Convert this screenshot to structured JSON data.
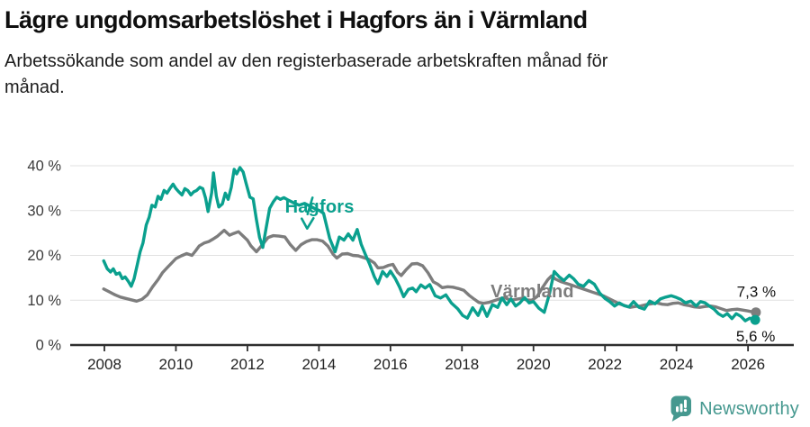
{
  "header": {
    "title": "Lägre ungdomsarbetslöshet i Hagfors än i Värmland",
    "subtitle": "Arbetssökande som andel av den registerbaserade arbetskraften månad för månad."
  },
  "footer": {
    "brand": "Newsworthy",
    "brand_color": "#45988f"
  },
  "chart_data": {
    "type": "line",
    "title": "Lägre ungdomsarbetslöshet i Hagfors än i Värmland",
    "unit": "%",
    "grid": true,
    "legend_position": "inline-labels",
    "xlim": [
      2007.9,
      2026.6
    ],
    "ylim": [
      0,
      43
    ],
    "x_ticks": [
      2008,
      2010,
      2012,
      2014,
      2016,
      2018,
      2020,
      2022,
      2024,
      2026
    ],
    "y_axis": [
      {
        "value": 40,
        "label": "40 %"
      },
      {
        "value": 30,
        "label": "30 %"
      },
      {
        "value": 20,
        "label": "20 %"
      },
      {
        "value": 10,
        "label": "10 %"
      },
      {
        "value": 0,
        "label": "0 %"
      }
    ],
    "series": [
      {
        "id": "varmland",
        "name": "Värmland",
        "color": "#7d7d7d",
        "end_label": "7,3 %",
        "end_label_side": "above",
        "end_value": 7.3,
        "label_anchor": {
          "x": 2018.8,
          "y": 12.1
        },
        "points": [
          [
            2007.98,
            12.5
          ],
          [
            2008.15,
            11.8
          ],
          [
            2008.3,
            11.2
          ],
          [
            2008.45,
            10.7
          ],
          [
            2008.6,
            10.4
          ],
          [
            2008.75,
            10.1
          ],
          [
            2008.9,
            9.8
          ],
          [
            2009.05,
            10.2
          ],
          [
            2009.2,
            11.2
          ],
          [
            2009.35,
            13.0
          ],
          [
            2009.5,
            14.6
          ],
          [
            2009.62,
            16.1
          ],
          [
            2009.75,
            17.2
          ],
          [
            2009.88,
            18.3
          ],
          [
            2010.0,
            19.3
          ],
          [
            2010.15,
            19.9
          ],
          [
            2010.3,
            20.4
          ],
          [
            2010.45,
            20.0
          ],
          [
            2010.55,
            21.0
          ],
          [
            2010.65,
            22.1
          ],
          [
            2010.8,
            22.8
          ],
          [
            2010.92,
            23.1
          ],
          [
            2011.05,
            23.7
          ],
          [
            2011.15,
            24.2
          ],
          [
            2011.25,
            24.9
          ],
          [
            2011.35,
            25.6
          ],
          [
            2011.5,
            24.5
          ],
          [
            2011.62,
            24.9
          ],
          [
            2011.75,
            25.3
          ],
          [
            2011.88,
            24.3
          ],
          [
            2012.0,
            23.4
          ],
          [
            2012.1,
            22.1
          ],
          [
            2012.25,
            20.8
          ],
          [
            2012.42,
            22.4
          ],
          [
            2012.58,
            24.0
          ],
          [
            2012.72,
            24.4
          ],
          [
            2012.88,
            24.3
          ],
          [
            2013.05,
            24.1
          ],
          [
            2013.2,
            22.4
          ],
          [
            2013.35,
            21.1
          ],
          [
            2013.5,
            22.4
          ],
          [
            2013.65,
            23.1
          ],
          [
            2013.8,
            23.5
          ],
          [
            2013.95,
            23.5
          ],
          [
            2014.1,
            23.2
          ],
          [
            2014.25,
            22.1
          ],
          [
            2014.4,
            20.2
          ],
          [
            2014.5,
            19.4
          ],
          [
            2014.65,
            20.3
          ],
          [
            2014.8,
            20.4
          ],
          [
            2014.95,
            20.0
          ],
          [
            2015.1,
            19.9
          ],
          [
            2015.25,
            19.5
          ],
          [
            2015.4,
            19.1
          ],
          [
            2015.55,
            18.3
          ],
          [
            2015.65,
            17.2
          ],
          [
            2015.8,
            17.3
          ],
          [
            2015.95,
            17.8
          ],
          [
            2016.07,
            18.0
          ],
          [
            2016.2,
            16.2
          ],
          [
            2016.3,
            15.5
          ],
          [
            2016.45,
            16.9
          ],
          [
            2016.6,
            18.1
          ],
          [
            2016.75,
            18.2
          ],
          [
            2016.9,
            17.7
          ],
          [
            2017.05,
            16.1
          ],
          [
            2017.2,
            14.1
          ],
          [
            2017.32,
            13.6
          ],
          [
            2017.45,
            12.8
          ],
          [
            2017.6,
            13.0
          ],
          [
            2017.75,
            12.9
          ],
          [
            2017.9,
            12.6
          ],
          [
            2018.05,
            12.2
          ],
          [
            2018.2,
            11.1
          ],
          [
            2018.35,
            10.2
          ],
          [
            2018.47,
            9.5
          ],
          [
            2018.6,
            9.3
          ],
          [
            2018.75,
            9.5
          ],
          [
            2018.9,
            9.9
          ],
          [
            2019.05,
            10.3
          ],
          [
            2019.2,
            10.6
          ],
          [
            2019.35,
            10.0
          ],
          [
            2019.5,
            10.2
          ],
          [
            2019.65,
            10.4
          ],
          [
            2019.8,
            10.1
          ],
          [
            2019.95,
            10.0
          ],
          [
            2020.1,
            10.8
          ],
          [
            2020.25,
            12.8
          ],
          [
            2020.4,
            14.6
          ],
          [
            2020.5,
            15.4
          ],
          [
            2020.62,
            14.7
          ],
          [
            2020.75,
            14.2
          ],
          [
            2020.9,
            13.8
          ],
          [
            2021.05,
            13.4
          ],
          [
            2021.2,
            13.0
          ],
          [
            2021.35,
            12.6
          ],
          [
            2021.5,
            12.2
          ],
          [
            2021.65,
            11.8
          ],
          [
            2021.8,
            11.4
          ],
          [
            2021.95,
            11.0
          ],
          [
            2022.1,
            10.4
          ],
          [
            2022.25,
            9.8
          ],
          [
            2022.4,
            9.2
          ],
          [
            2022.55,
            8.8
          ],
          [
            2022.7,
            8.4
          ],
          [
            2022.85,
            8.6
          ],
          [
            2023.0,
            8.7
          ],
          [
            2023.15,
            9.0
          ],
          [
            2023.3,
            9.2
          ],
          [
            2023.45,
            9.4
          ],
          [
            2023.6,
            9.1
          ],
          [
            2023.75,
            9.0
          ],
          [
            2023.9,
            9.3
          ],
          [
            2024.05,
            9.4
          ],
          [
            2024.2,
            9.0
          ],
          [
            2024.35,
            8.8
          ],
          [
            2024.5,
            8.5
          ],
          [
            2024.65,
            8.4
          ],
          [
            2024.8,
            8.6
          ],
          [
            2024.95,
            8.7
          ],
          [
            2025.1,
            8.5
          ],
          [
            2025.25,
            8.1
          ],
          [
            2025.4,
            7.7
          ],
          [
            2025.55,
            7.9
          ],
          [
            2025.7,
            8.0
          ],
          [
            2025.85,
            7.8
          ],
          [
            2026.0,
            7.6
          ],
          [
            2026.12,
            7.4
          ],
          [
            2026.22,
            7.3
          ]
        ]
      },
      {
        "id": "hagfors",
        "name": "Hagfors",
        "color": "#0aa08e",
        "end_label": "5,6 %",
        "end_label_side": "below",
        "end_value": 5.6,
        "label_anchor": {
          "x": 2013.05,
          "y": 31.0
        },
        "arrow": {
          "from": [
            2013.82,
            32.9
          ],
          "to": [
            2013.67,
            26.0
          ]
        },
        "points": [
          [
            2007.98,
            18.8
          ],
          [
            2008.08,
            17.0
          ],
          [
            2008.17,
            16.3
          ],
          [
            2008.25,
            17.0
          ],
          [
            2008.33,
            15.8
          ],
          [
            2008.42,
            16.1
          ],
          [
            2008.5,
            14.8
          ],
          [
            2008.58,
            15.2
          ],
          [
            2008.67,
            14.2
          ],
          [
            2008.75,
            13.1
          ],
          [
            2008.83,
            14.8
          ],
          [
            2008.92,
            18.0
          ],
          [
            2009.0,
            20.8
          ],
          [
            2009.08,
            22.8
          ],
          [
            2009.17,
            26.8
          ],
          [
            2009.25,
            28.5
          ],
          [
            2009.33,
            31.2
          ],
          [
            2009.42,
            30.8
          ],
          [
            2009.5,
            33.2
          ],
          [
            2009.58,
            32.5
          ],
          [
            2009.67,
            34.5
          ],
          [
            2009.75,
            33.9
          ],
          [
            2009.83,
            34.9
          ],
          [
            2009.92,
            35.9
          ],
          [
            2010.0,
            34.9
          ],
          [
            2010.08,
            34.2
          ],
          [
            2010.17,
            33.5
          ],
          [
            2010.25,
            34.9
          ],
          [
            2010.33,
            34.5
          ],
          [
            2010.42,
            33.5
          ],
          [
            2010.5,
            34.2
          ],
          [
            2010.58,
            34.5
          ],
          [
            2010.67,
            35.2
          ],
          [
            2010.75,
            34.9
          ],
          [
            2010.83,
            32.8
          ],
          [
            2010.9,
            29.8
          ],
          [
            2011.0,
            34.0
          ],
          [
            2011.05,
            38.4
          ],
          [
            2011.13,
            33.2
          ],
          [
            2011.2,
            30.8
          ],
          [
            2011.3,
            31.5
          ],
          [
            2011.38,
            33.9
          ],
          [
            2011.46,
            32.5
          ],
          [
            2011.55,
            35.2
          ],
          [
            2011.63,
            39.2
          ],
          [
            2011.7,
            38.2
          ],
          [
            2011.79,
            39.6
          ],
          [
            2011.88,
            38.6
          ],
          [
            2011.96,
            36.2
          ],
          [
            2012.07,
            33.0
          ],
          [
            2012.16,
            32.6
          ],
          [
            2012.25,
            28.0
          ],
          [
            2012.34,
            24.0
          ],
          [
            2012.43,
            21.8
          ],
          [
            2012.52,
            26.0
          ],
          [
            2012.62,
            30.5
          ],
          [
            2012.72,
            31.9
          ],
          [
            2012.82,
            33.0
          ],
          [
            2012.92,
            32.5
          ],
          [
            2013.02,
            32.9
          ],
          [
            2013.15,
            32.3
          ],
          [
            2013.3,
            31.7
          ],
          [
            2013.45,
            31.2
          ],
          [
            2013.6,
            31.6
          ],
          [
            2013.75,
            31.0
          ],
          [
            2013.9,
            30.4
          ],
          [
            2014.02,
            30.0
          ],
          [
            2014.13,
            29.4
          ],
          [
            2014.3,
            23.8
          ],
          [
            2014.45,
            20.8
          ],
          [
            2014.57,
            24.1
          ],
          [
            2014.7,
            23.4
          ],
          [
            2014.82,
            24.8
          ],
          [
            2014.95,
            23.4
          ],
          [
            2015.07,
            25.8
          ],
          [
            2015.18,
            22.5
          ],
          [
            2015.3,
            20.2
          ],
          [
            2015.42,
            18.0
          ],
          [
            2015.55,
            15.2
          ],
          [
            2015.65,
            13.7
          ],
          [
            2015.78,
            16.4
          ],
          [
            2015.9,
            15.3
          ],
          [
            2016.0,
            16.5
          ],
          [
            2016.13,
            14.9
          ],
          [
            2016.25,
            13.0
          ],
          [
            2016.37,
            10.8
          ],
          [
            2016.5,
            12.4
          ],
          [
            2016.62,
            12.7
          ],
          [
            2016.72,
            11.9
          ],
          [
            2016.85,
            13.4
          ],
          [
            2016.97,
            12.7
          ],
          [
            2017.1,
            13.5
          ],
          [
            2017.25,
            11.0
          ],
          [
            2017.4,
            10.5
          ],
          [
            2017.55,
            11.2
          ],
          [
            2017.7,
            9.4
          ],
          [
            2017.88,
            8.1
          ],
          [
            2018.02,
            6.6
          ],
          [
            2018.15,
            6.0
          ],
          [
            2018.3,
            8.3
          ],
          [
            2018.45,
            6.6
          ],
          [
            2018.57,
            8.7
          ],
          [
            2018.7,
            6.4
          ],
          [
            2018.85,
            9.0
          ],
          [
            2019.0,
            8.4
          ],
          [
            2019.12,
            10.5
          ],
          [
            2019.25,
            9.0
          ],
          [
            2019.37,
            10.3
          ],
          [
            2019.5,
            8.7
          ],
          [
            2019.62,
            9.4
          ],
          [
            2019.75,
            10.6
          ],
          [
            2019.88,
            9.4
          ],
          [
            2020.0,
            9.7
          ],
          [
            2020.15,
            8.2
          ],
          [
            2020.3,
            7.3
          ],
          [
            2020.45,
            11.5
          ],
          [
            2020.58,
            16.4
          ],
          [
            2020.72,
            15.2
          ],
          [
            2020.85,
            14.4
          ],
          [
            2021.0,
            15.6
          ],
          [
            2021.12,
            14.8
          ],
          [
            2021.25,
            13.6
          ],
          [
            2021.4,
            13.1
          ],
          [
            2021.55,
            14.4
          ],
          [
            2021.7,
            13.6
          ],
          [
            2021.85,
            11.6
          ],
          [
            2022.0,
            10.4
          ],
          [
            2022.13,
            9.7
          ],
          [
            2022.27,
            8.7
          ],
          [
            2022.4,
            9.4
          ],
          [
            2022.53,
            8.8
          ],
          [
            2022.67,
            8.5
          ],
          [
            2022.8,
            9.7
          ],
          [
            2022.95,
            8.4
          ],
          [
            2023.1,
            8.0
          ],
          [
            2023.25,
            9.8
          ],
          [
            2023.4,
            9.2
          ],
          [
            2023.55,
            10.3
          ],
          [
            2023.7,
            10.7
          ],
          [
            2023.85,
            11.0
          ],
          [
            2024.0,
            10.6
          ],
          [
            2024.12,
            10.2
          ],
          [
            2024.25,
            9.4
          ],
          [
            2024.4,
            9.8
          ],
          [
            2024.55,
            8.7
          ],
          [
            2024.67,
            9.7
          ],
          [
            2024.8,
            9.4
          ],
          [
            2024.92,
            8.7
          ],
          [
            2025.05,
            8.0
          ],
          [
            2025.17,
            7.0
          ],
          [
            2025.3,
            6.4
          ],
          [
            2025.42,
            7.0
          ],
          [
            2025.55,
            5.9
          ],
          [
            2025.67,
            7.0
          ],
          [
            2025.8,
            6.4
          ],
          [
            2025.92,
            5.4
          ],
          [
            2026.05,
            6.0
          ],
          [
            2026.2,
            5.6
          ]
        ]
      }
    ]
  }
}
